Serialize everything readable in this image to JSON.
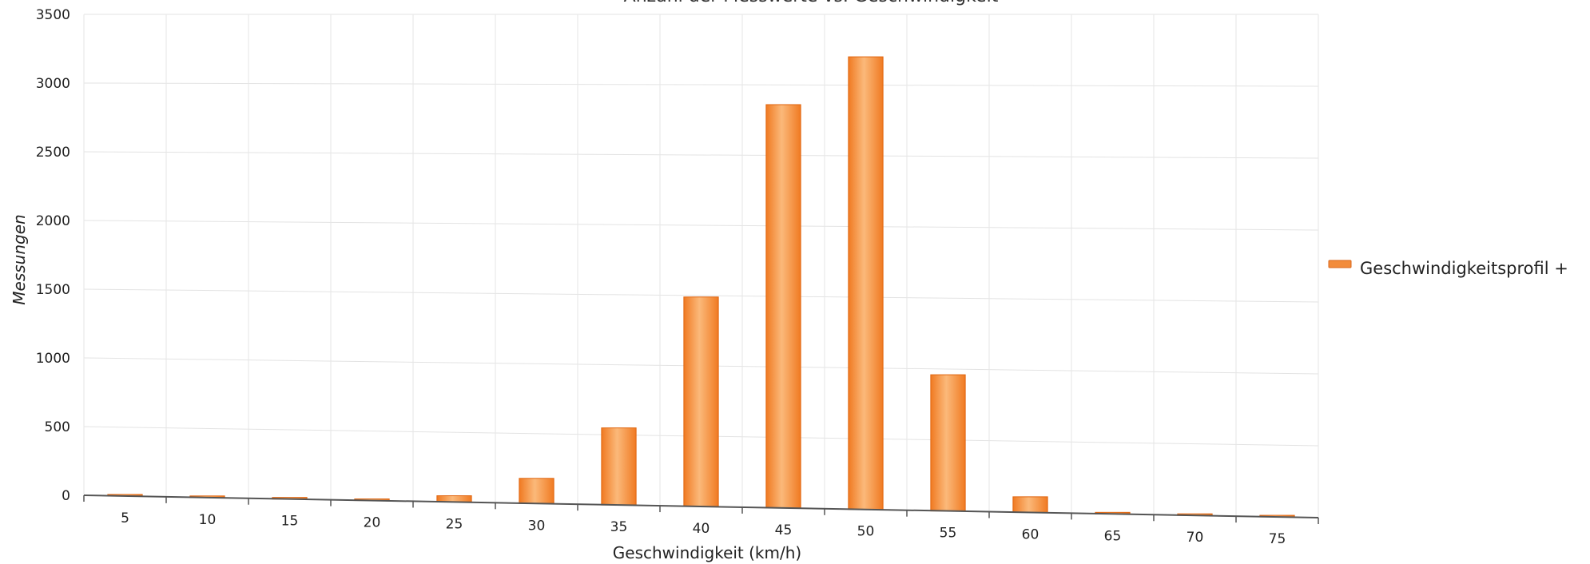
{
  "chart_data": {
    "type": "bar",
    "title": "Anzahl der Messwerte vs. Geschwindigkeit",
    "xlabel": "Geschwindigkeit (km/h)",
    "ylabel": "Messungen",
    "categories": [
      "5",
      "10",
      "15",
      "20",
      "25",
      "30",
      "35",
      "40",
      "45",
      "50",
      "55",
      "60",
      "65",
      "70",
      "75"
    ],
    "series": [
      {
        "name": "Geschwindigkeitsprofil +",
        "values": [
          5,
          5,
          5,
          10,
          45,
          180,
          550,
          1490,
          2860,
          3200,
          960,
          110,
          10,
          5,
          5
        ]
      }
    ],
    "ylim": [
      0,
      3500
    ],
    "yticks": [
      "0",
      "500",
      "1000",
      "1500",
      "2000",
      "2500",
      "3000",
      "3500"
    ],
    "grid": true,
    "legend_position": "right",
    "bar_color": "#f28c3c"
  }
}
